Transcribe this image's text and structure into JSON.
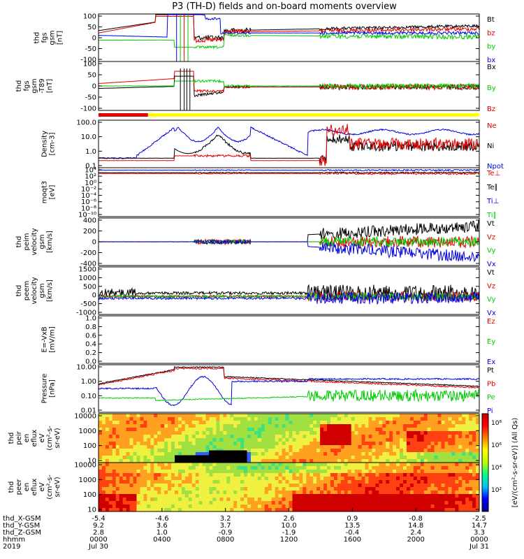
{
  "title": "P3 (TH-D) fields and on-board moments overview",
  "colors": {
    "black": "#000000",
    "red": "#e00000",
    "green": "#00cc00",
    "blue": "#0000e0",
    "yellow": "#ffff00",
    "frame": "#000000"
  },
  "panels": [
    {
      "id": "fgs-gsm",
      "ylabel": [
        "thd",
        "fgs",
        "gsm",
        "[nT]"
      ],
      "ticks": [
        "100",
        "50",
        "0",
        "-50",
        "-100"
      ],
      "legend": [
        {
          "text": "Bt",
          "color": "black"
        },
        {
          "text": "bz",
          "color": "red"
        },
        {
          "text": "by",
          "color": "green"
        },
        {
          "text": "bx",
          "color": "blue"
        }
      ]
    },
    {
      "id": "fgs-gsm-t89",
      "ylabel": [
        "thd",
        "fgs",
        "gsm",
        "-T89",
        "[nT]"
      ],
      "ticks": [
        "100",
        "50",
        "0",
        "-50",
        "-100"
      ],
      "legend": [
        {
          "text": "Bx",
          "color": "black"
        },
        {
          "text": "By",
          "color": "green"
        },
        {
          "text": "Bz",
          "color": "red"
        }
      ]
    },
    {
      "id": "density",
      "ylabel": [
        "Density",
        "[cm-3]"
      ],
      "ticks": [
        "100.0",
        "10.0",
        "1.0",
        "0.1"
      ],
      "legend": [
        {
          "text": "Ne",
          "color": "red"
        },
        {
          "text": "Ni",
          "color": "black"
        },
        {
          "text": "Npot",
          "color": "blue"
        }
      ]
    },
    {
      "id": "temperature",
      "ylabel": [
        "moqt3",
        "[eV]"
      ],
      "ticks": [
        "10⁴",
        "10²",
        "10⁰",
        "10⁻²",
        "10⁻⁴",
        "10⁻⁶",
        "10⁻⁸",
        "10⁻¹⁰"
      ],
      "legend": [
        {
          "text": "Te⊥",
          "color": "red"
        },
        {
          "text": "Te∥",
          "color": "black"
        },
        {
          "text": "Ti⊥",
          "color": "blue"
        },
        {
          "text": "Ti∥",
          "color": "green"
        }
      ]
    },
    {
      "id": "peim-velocity",
      "ylabel": [
        "thd",
        "peim",
        "velocity",
        "gsm",
        "[km/s]"
      ],
      "ticks": [
        "400",
        "200",
        "0",
        "-200",
        "-400"
      ],
      "legend": [
        {
          "text": "Vt",
          "color": "black"
        },
        {
          "text": "Vz",
          "color": "red"
        },
        {
          "text": "Vy",
          "color": "green"
        },
        {
          "text": "Vx",
          "color": "blue"
        }
      ]
    },
    {
      "id": "peem-velocity",
      "ylabel": [
        "thd",
        "peem",
        "velocity",
        "gsm",
        "[km/s]"
      ],
      "ticks": [
        "1500",
        "1000",
        "500",
        "0",
        "-500",
        "-1000"
      ],
      "legend": [
        {
          "text": "Vt",
          "color": "black"
        },
        {
          "text": "Vz",
          "color": "red"
        },
        {
          "text": "Vy",
          "color": "green"
        },
        {
          "text": "Vx",
          "color": "blue"
        }
      ]
    },
    {
      "id": "exb",
      "ylabel": [
        "E=-VxB",
        "[mV/m]"
      ],
      "ticks": [
        "1.0",
        "0.8",
        "0.6",
        "0.4",
        "0.2",
        "0.0"
      ],
      "legend": [
        {
          "text": "Ez",
          "color": "red"
        },
        {
          "text": "Ey",
          "color": "green"
        },
        {
          "text": "Ex",
          "color": "blue"
        }
      ]
    },
    {
      "id": "pressure",
      "ylabel": [
        "Pressure",
        "[nPa]"
      ],
      "ticks": [
        "10.00",
        "1.00",
        "0.10",
        "0.01"
      ],
      "legend": [
        {
          "text": "Pt",
          "color": "black"
        },
        {
          "text": "Pb",
          "color": "red"
        },
        {
          "text": "Pe",
          "color": "green"
        },
        {
          "text": "Pi",
          "color": "blue"
        }
      ]
    },
    {
      "id": "peir-spec",
      "ylabel": [
        "thd",
        "peir",
        "en",
        "eflux",
        "eV",
        "(cm²-s-",
        "sr-eV)"
      ],
      "ticks": [
        "10000",
        "1000",
        "100",
        "10"
      ]
    },
    {
      "id": "peer-spec",
      "ylabel": [
        "thd",
        "peer",
        "en",
        "eflux",
        "eV",
        "(cm²-s-",
        "sr-eV)"
      ],
      "ticks": [
        "10000",
        "1000",
        "100",
        "10"
      ]
    }
  ],
  "colorbar": {
    "ticks": [
      "10⁸",
      "10⁶",
      "10⁴",
      "10²"
    ],
    "label": "[eV/(cm²-s-sr-eV)] (All Qs)"
  },
  "ephemeris": {
    "row_labels": [
      "thd_X-GSM",
      "thd_Y-GSM",
      "thd_Z-GSM",
      "hhmm",
      "2019"
    ],
    "columns": [
      {
        "x": "-5.4",
        "y": "9.2",
        "z": "2.8",
        "t": "0000",
        "d": "Jul 30"
      },
      {
        "x": "-4.6",
        "y": "3.6",
        "z": "1.0",
        "t": "0400",
        "d": ""
      },
      {
        "x": "3.2",
        "y": "3.7",
        "z": "-0.9",
        "t": "0800",
        "d": ""
      },
      {
        "x": "2.6",
        "y": "10.0",
        "z": "-1.9",
        "t": "1200",
        "d": ""
      },
      {
        "x": "0.9",
        "y": "13.5",
        "z": "-0.4",
        "t": "1600",
        "d": ""
      },
      {
        "x": "-0.8",
        "y": "14.8",
        "z": "2.4",
        "t": "2000",
        "d": ""
      },
      {
        "x": "-2.5",
        "y": "14.7",
        "z": "3.3",
        "t": "0000",
        "d": "Jul 31"
      }
    ]
  }
}
